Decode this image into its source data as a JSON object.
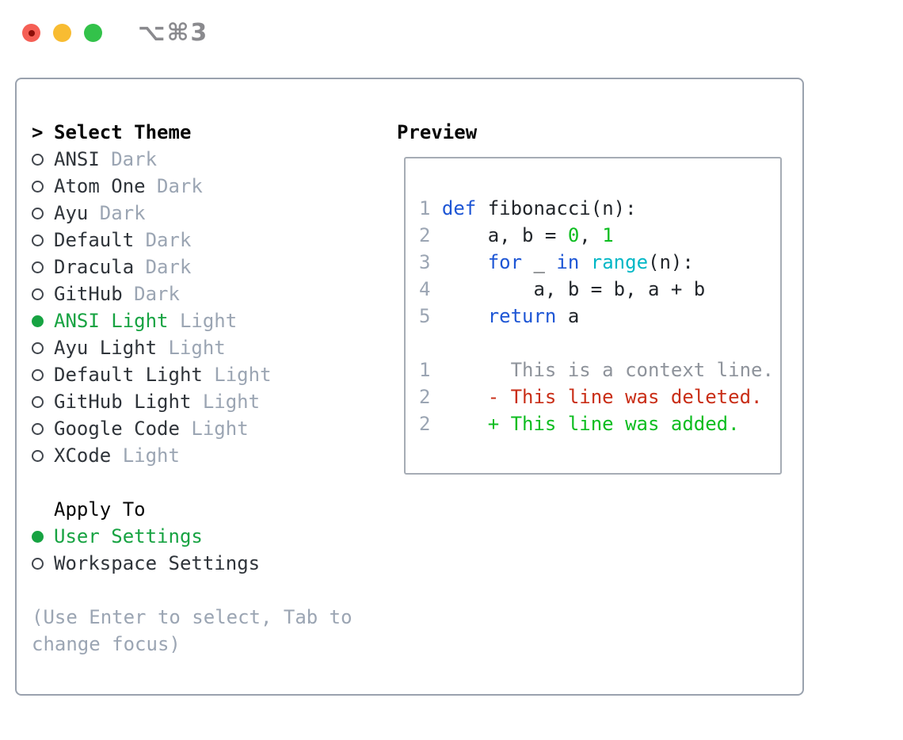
{
  "window": {
    "title_shortcut": "⌥⌘3",
    "controls": [
      {
        "name": "close",
        "color": "#f55f55"
      },
      {
        "name": "minimize",
        "color": "#f8bc32"
      },
      {
        "name": "zoom",
        "color": "#33c24a"
      }
    ]
  },
  "theme_list": {
    "header_prefix": ">",
    "header": "Select Theme",
    "items": [
      {
        "name": "ANSI",
        "variant": "Dark",
        "selected": false
      },
      {
        "name": "Atom One",
        "variant": "Dark",
        "selected": false
      },
      {
        "name": "Ayu",
        "variant": "Dark",
        "selected": false
      },
      {
        "name": "Default",
        "variant": "Dark",
        "selected": false
      },
      {
        "name": "Dracula",
        "variant": "Dark",
        "selected": false
      },
      {
        "name": "GitHub",
        "variant": "Dark",
        "selected": false
      },
      {
        "name": "ANSI Light",
        "variant": "Light",
        "selected": true
      },
      {
        "name": "Ayu Light",
        "variant": "Light",
        "selected": false
      },
      {
        "name": "Default Light",
        "variant": "Light",
        "selected": false
      },
      {
        "name": "GitHub Light",
        "variant": "Light",
        "selected": false
      },
      {
        "name": "Google Code",
        "variant": "Light",
        "selected": false
      },
      {
        "name": "XCode",
        "variant": "Light",
        "selected": false
      }
    ]
  },
  "apply_to": {
    "header": "Apply To",
    "options": [
      {
        "label": "User Settings",
        "selected": true
      },
      {
        "label": "Workspace Settings",
        "selected": false
      }
    ]
  },
  "footer_hint": "(Use Enter to select, Tab to change focus)",
  "preview": {
    "header": "Preview",
    "lines": [
      {
        "no": "1",
        "blank": false,
        "tokens": [
          {
            "t": "def",
            "c": "kw"
          },
          {
            "t": " fibonacci(n):",
            "c": "pl"
          }
        ]
      },
      {
        "no": "2",
        "blank": false,
        "tokens": [
          {
            "t": "    a, b = ",
            "c": "pl"
          },
          {
            "t": "0",
            "c": "num"
          },
          {
            "t": ", ",
            "c": "pl"
          },
          {
            "t": "1",
            "c": "num"
          }
        ]
      },
      {
        "no": "3",
        "blank": false,
        "tokens": [
          {
            "t": "    ",
            "c": "pl"
          },
          {
            "t": "for",
            "c": "kw"
          },
          {
            "t": " _ ",
            "c": "pl"
          },
          {
            "t": "in",
            "c": "kw"
          },
          {
            "t": " ",
            "c": "pl"
          },
          {
            "t": "range",
            "c": "fn"
          },
          {
            "t": "(n):",
            "c": "pl"
          }
        ]
      },
      {
        "no": "4",
        "blank": false,
        "tokens": [
          {
            "t": "        a, b = b, a + b",
            "c": "pl"
          }
        ]
      },
      {
        "no": "5",
        "blank": false,
        "tokens": [
          {
            "t": "    ",
            "c": "pl"
          },
          {
            "t": "return",
            "c": "kw"
          },
          {
            "t": " a",
            "c": "pl"
          }
        ]
      },
      {
        "no": "",
        "blank": true,
        "tokens": []
      },
      {
        "no": "1",
        "blank": false,
        "tokens": [
          {
            "t": "      This is a context line.",
            "c": "ctx"
          }
        ]
      },
      {
        "no": "2",
        "blank": false,
        "tokens": [
          {
            "t": "    - This line was deleted.",
            "c": "del"
          }
        ]
      },
      {
        "no": "2",
        "blank": false,
        "tokens": [
          {
            "t": "    + This line was added.",
            "c": "add"
          }
        ]
      }
    ]
  },
  "colors": {
    "accent_green": "#17a342",
    "bright_green": "#0dbd20",
    "red": "#c92e17",
    "blue": "#1e56d5",
    "cyan": "#00b7c6",
    "muted_gray": "#9ba5b3",
    "outer_border": "#9aa2ae",
    "preview_border": "#a6acb5"
  }
}
